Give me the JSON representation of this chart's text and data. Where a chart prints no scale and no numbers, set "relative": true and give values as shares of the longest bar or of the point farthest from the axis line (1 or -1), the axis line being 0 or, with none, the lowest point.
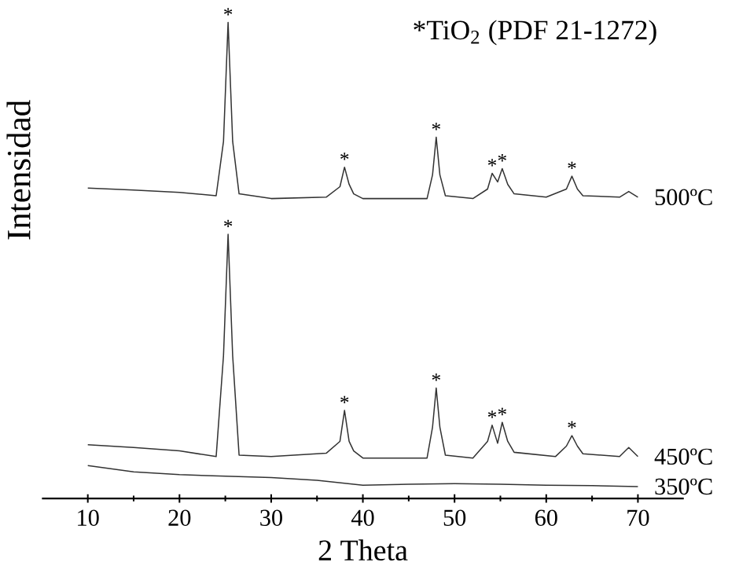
{
  "chart_data": {
    "type": "line",
    "relative": true,
    "xlabel": "2 Theta",
    "ylabel": "Intensidad",
    "xlim": [
      5,
      75
    ],
    "xticks": [
      10,
      20,
      30,
      40,
      50,
      60,
      70
    ],
    "line_style": "solid",
    "series": [
      {
        "name": "500ºC",
        "color": "#333333",
        "x": [
          10,
          15,
          20,
          24,
          24.8,
          25.3,
          25.8,
          26.5,
          30,
          36,
          37.5,
          38,
          38.5,
          39,
          40,
          47,
          47.6,
          48,
          48.4,
          49,
          52,
          53.6,
          54.1,
          54.7,
          55.2,
          55.8,
          56.5,
          60,
          62.2,
          62.8,
          63.4,
          64,
          68,
          69,
          70
        ],
        "values": [
          0.652,
          0.648,
          0.643,
          0.636,
          0.75,
          1.0,
          0.75,
          0.64,
          0.63,
          0.633,
          0.655,
          0.696,
          0.66,
          0.64,
          0.63,
          0.63,
          0.68,
          0.759,
          0.68,
          0.636,
          0.63,
          0.65,
          0.683,
          0.665,
          0.693,
          0.66,
          0.64,
          0.633,
          0.65,
          0.677,
          0.65,
          0.636,
          0.633,
          0.645,
          0.633
        ]
      },
      {
        "name": "450ºC",
        "color": "#333333",
        "x": [
          10,
          15,
          20,
          24,
          24.8,
          25.3,
          25.8,
          26.5,
          30,
          36,
          37.5,
          38,
          38.5,
          39,
          40,
          47,
          47.6,
          48,
          48.4,
          49,
          52,
          53.6,
          54.1,
          54.7,
          55.2,
          55.8,
          56.5,
          61,
          62.2,
          62.8,
          63.4,
          64,
          68,
          69,
          70
        ],
        "values": [
          0.113,
          0.107,
          0.1,
          0.088,
          0.3,
          0.555,
          0.3,
          0.091,
          0.088,
          0.095,
          0.12,
          0.185,
          0.12,
          0.1,
          0.085,
          0.085,
          0.15,
          0.232,
          0.15,
          0.091,
          0.085,
          0.12,
          0.154,
          0.116,
          0.16,
          0.12,
          0.097,
          0.088,
          0.11,
          0.132,
          0.11,
          0.094,
          0.088,
          0.107,
          0.088
        ]
      },
      {
        "name": "350ºC",
        "color": "#333333",
        "x": [
          10,
          15,
          20,
          25,
          30,
          35,
          40,
          45,
          50,
          55,
          60,
          65,
          70
        ],
        "values": [
          0.069,
          0.056,
          0.05,
          0.047,
          0.044,
          0.038,
          0.028,
          0.03,
          0.031,
          0.03,
          0.028,
          0.027,
          0.025
        ]
      }
    ],
    "annotations": [
      "*TiO$_{2}$ (PDF 21-1272)",
      {
        "text": "*",
        "x": 25.3,
        "y": 1.0
      },
      {
        "text": "*",
        "x": 38,
        "y": 0.696
      },
      {
        "text": "*",
        "x": 48,
        "y": 0.759
      },
      {
        "text": "*",
        "x": 54.1,
        "y": 0.683
      },
      {
        "text": "*",
        "x": 55.2,
        "y": 0.693
      },
      {
        "text": "*",
        "x": 62.8,
        "y": 0.677
      },
      {
        "text": "*",
        "x": 25.3,
        "y": 0.555
      },
      {
        "text": "*",
        "x": 38,
        "y": 0.185
      },
      {
        "text": "*",
        "x": 48,
        "y": 0.232
      },
      {
        "text": "*",
        "x": 54.1,
        "y": 0.154
      },
      {
        "text": "*",
        "x": 55.2,
        "y": 0.16
      },
      {
        "text": "*",
        "x": 62.8,
        "y": 0.132
      }
    ]
  }
}
